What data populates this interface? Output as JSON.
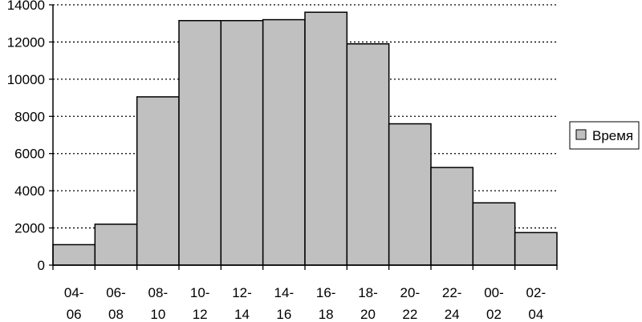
{
  "chart_data": {
    "type": "bar",
    "categories": [
      [
        "04-",
        "06"
      ],
      [
        "06-",
        "08"
      ],
      [
        "08-",
        "10"
      ],
      [
        "10-",
        "12"
      ],
      [
        "12-",
        "14"
      ],
      [
        "14-",
        "16"
      ],
      [
        "16-",
        "18"
      ],
      [
        "18-",
        "20"
      ],
      [
        "20-",
        "22"
      ],
      [
        "22-",
        "24"
      ],
      [
        "00-",
        "02"
      ],
      [
        "02-",
        "04"
      ]
    ],
    "series": [
      {
        "name": "Время",
        "values": [
          1100,
          2200,
          9050,
          13150,
          13150,
          13200,
          13600,
          11900,
          7600,
          5250,
          3350,
          1750
        ]
      }
    ],
    "title": "",
    "xlabel": "",
    "ylabel": "",
    "ylim": [
      0,
      14000
    ],
    "yticks": [
      0,
      2000,
      4000,
      6000,
      8000,
      10000,
      12000,
      14000
    ],
    "grid": "horizontal-dotted",
    "legend_position": "right",
    "colors": {
      "bar_fill": "#c0c0c0",
      "bar_stroke": "#000000",
      "grid": "#000000",
      "background": "#ffffff"
    }
  }
}
